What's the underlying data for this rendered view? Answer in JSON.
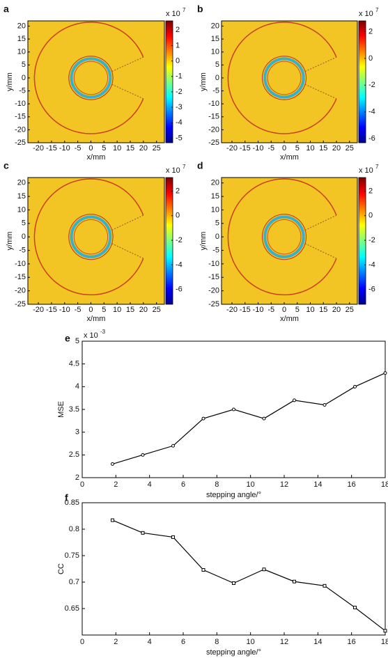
{
  "chart_data": [
    {
      "type": "heatmap",
      "panel_label": "a",
      "xlabel": "x/mm",
      "ylabel": "y/mm",
      "xlim": [
        -24,
        28
      ],
      "xticks": [
        -20,
        -15,
        -10,
        -5,
        0,
        5,
        10,
        15,
        20,
        25
      ],
      "ylim": [
        -25,
        22
      ],
      "yticks": [
        -25,
        -20,
        -15,
        -10,
        -5,
        0,
        5,
        10,
        15,
        20
      ],
      "clim": [
        -5.3,
        2.6
      ],
      "cticks": [
        -5,
        -4,
        -3,
        -2,
        -1,
        0,
        1,
        2
      ],
      "colorbar_label": "x 10",
      "colorbar_exponent": "7"
    },
    {
      "type": "heatmap",
      "panel_label": "b",
      "xlabel": "x/mm",
      "ylabel": "y/mm",
      "xlim": [
        -24,
        28
      ],
      "xticks": [
        -20,
        -15,
        -10,
        -5,
        0,
        5,
        10,
        15,
        20,
        25
      ],
      "ylim": [
        -25,
        22
      ],
      "yticks": [
        -25,
        -20,
        -15,
        -10,
        -5,
        0,
        5,
        10,
        15,
        20
      ],
      "clim": [
        -6.3,
        2.8
      ],
      "cticks": [
        -6,
        -4,
        -2,
        0,
        2
      ],
      "colorbar_label": "x 10",
      "colorbar_exponent": "7"
    },
    {
      "type": "heatmap",
      "panel_label": "c",
      "xlabel": "x/mm",
      "ylabel": "y/mm",
      "xlim": [
        -24,
        28
      ],
      "xticks": [
        -20,
        -15,
        -10,
        -5,
        0,
        5,
        10,
        15,
        20,
        25
      ],
      "ylim": [
        -25,
        22
      ],
      "yticks": [
        -25,
        -20,
        -15,
        -10,
        -5,
        0,
        5,
        10,
        15,
        20
      ],
      "clim": [
        -7.2,
        3.1
      ],
      "cticks": [
        -6,
        -4,
        -2,
        0,
        2
      ],
      "colorbar_label": "x 10",
      "colorbar_exponent": "7"
    },
    {
      "type": "heatmap",
      "panel_label": "d",
      "xlabel": "x/mm",
      "ylabel": "y/mm",
      "xlim": [
        -24,
        28
      ],
      "xticks": [
        -20,
        -15,
        -10,
        -5,
        0,
        5,
        10,
        15,
        20,
        25
      ],
      "ylim": [
        -25,
        22
      ],
      "yticks": [
        -25,
        -20,
        -15,
        -10,
        -5,
        0,
        5,
        10,
        15,
        20
      ],
      "clim": [
        -7.2,
        3.1
      ],
      "cticks": [
        -6,
        -4,
        -2,
        0,
        2
      ],
      "colorbar_label": "x 10",
      "colorbar_exponent": "7"
    },
    {
      "type": "line",
      "panel_label": "e",
      "xlabel": "stepping angle/°",
      "ylabel": "MSE",
      "multiplier_label": "x 10",
      "multiplier_exponent": "-3",
      "x": [
        1.8,
        3.6,
        5.4,
        7.2,
        9,
        10.8,
        12.6,
        14.4,
        16.2,
        18
      ],
      "values": [
        2.3,
        2.5,
        2.7,
        3.3,
        3.5,
        3.3,
        3.7,
        3.6,
        4.0,
        4.3
      ],
      "color": "#000000",
      "marker": "circle",
      "xlim": [
        0,
        18
      ],
      "xticks": [
        0,
        2,
        4,
        6,
        8,
        10,
        12,
        14,
        16,
        18
      ],
      "ylim": [
        2,
        5
      ],
      "yticks": [
        2,
        2.5,
        3,
        3.5,
        4,
        4.5,
        5
      ]
    },
    {
      "type": "line",
      "panel_label": "f",
      "xlabel": "stepping angle/°",
      "ylabel": "CC",
      "x": [
        1.8,
        3.6,
        5.4,
        7.2,
        9,
        10.8,
        12.6,
        14.4,
        16.2,
        18
      ],
      "values": [
        0.817,
        0.793,
        0.785,
        0.723,
        0.698,
        0.724,
        0.701,
        0.693,
        0.652,
        0.608
      ],
      "color": "#000000",
      "marker": "square",
      "xlim": [
        0,
        18
      ],
      "xticks": [
        0,
        2,
        4,
        6,
        8,
        10,
        12,
        14,
        16,
        18
      ],
      "ylim": [
        0.6,
        0.85
      ],
      "yticks": [
        0.65,
        0.7,
        0.75,
        0.8,
        0.85
      ]
    }
  ]
}
